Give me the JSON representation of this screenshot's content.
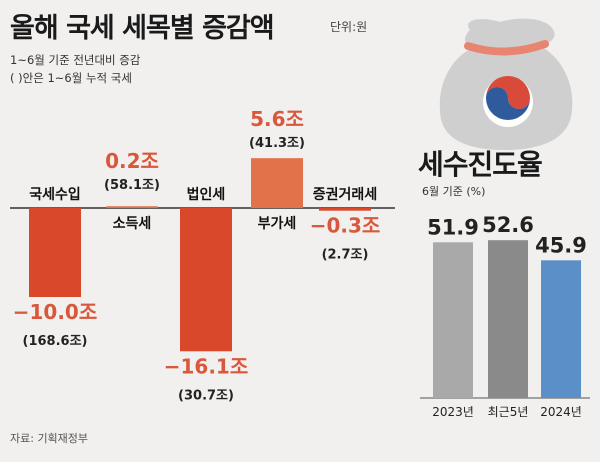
{
  "header": {
    "title": "올해 국세 세목별 증감액",
    "unit": "단위:원",
    "note1": "1~6월 기준 전년대비 증감",
    "note2": "( )안은 1~6월 누적 국세"
  },
  "source": "자료: 기획재정부",
  "colors": {
    "neg": "#d9482b",
    "pos": "#e0734a",
    "gray": "#a9a9a9",
    "dark_gray": "#8a8a8a",
    "blue": "#5b8fc8"
  },
  "chart_data": [
    {
      "type": "bar",
      "title": "올해 국세 세목별 증감액",
      "unit": "조",
      "categories": [
        "국세수입",
        "소득세",
        "법인세",
        "부가세",
        "증권거래세"
      ],
      "values": [
        -10.0,
        0.2,
        -16.1,
        5.6,
        -0.3
      ],
      "value_labels": [
        "−10.0조",
        "0.2조",
        "−16.1조",
        "5.6조",
        "−0.3조"
      ],
      "cumulative_labels": [
        "(168.6조)",
        "(58.1조)",
        "(30.7조)",
        "(41.3조)",
        "(2.7조)"
      ]
    },
    {
      "type": "bar",
      "title": "세수진도율",
      "subtitle": "6월 기준 (%)",
      "categories": [
        "2023년",
        "최근5년",
        "2024년"
      ],
      "values": [
        51.9,
        52.6,
        45.9
      ],
      "value_labels": [
        "51.9",
        "52.6",
        "45.9"
      ]
    }
  ]
}
